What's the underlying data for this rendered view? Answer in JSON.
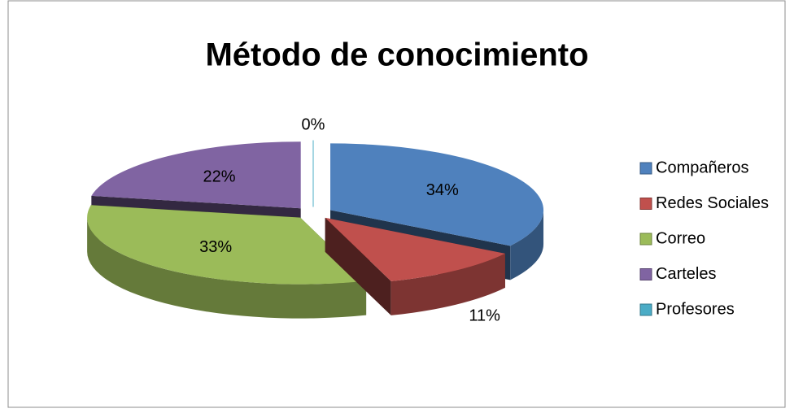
{
  "chart_data": {
    "type": "pie",
    "title": "Método de conocimiento",
    "categories": [
      "Compañeros",
      "Redes Sociales",
      "Correo",
      "Carteles",
      "Profesores"
    ],
    "values": [
      34,
      11,
      33,
      22,
      0
    ],
    "value_labels": [
      "34%",
      "11%",
      "33%",
      "22%",
      "0%"
    ],
    "colors": [
      "#4f81bd",
      "#c0504d",
      "#9bbb59",
      "#8064a2",
      "#4bacc6"
    ],
    "legend": "right"
  }
}
